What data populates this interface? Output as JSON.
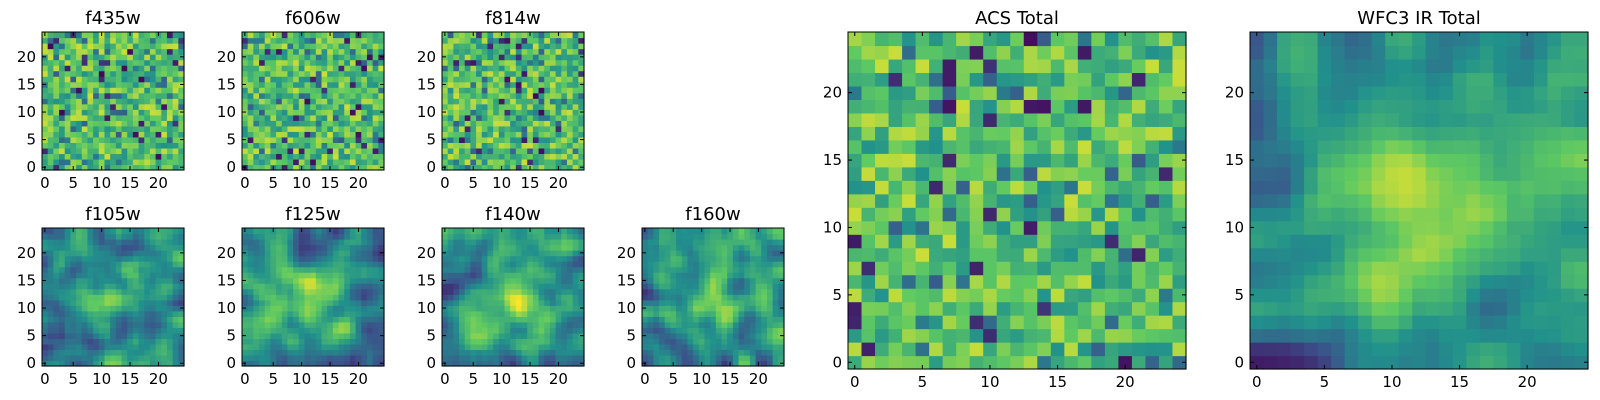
{
  "chart_data": [
    {
      "type": "heatmap",
      "title": "f435w",
      "rows": 25,
      "cols": 25,
      "xlim": [
        0,
        24
      ],
      "ylim": [
        0,
        24
      ],
      "xticks": [
        0,
        5,
        10,
        15,
        20
      ],
      "yticks": [
        0,
        5,
        10,
        15,
        20
      ],
      "xtick_labels": [
        "0",
        "5",
        "10",
        "15",
        "20"
      ],
      "ytick_labels": [
        "0",
        "5",
        "10",
        "15",
        "20"
      ],
      "colormap": "viridis",
      "pattern": "fine noise, mostly green/yellow, scattered dark pixels",
      "seed": 11
    },
    {
      "type": "heatmap",
      "title": "f606w",
      "rows": 25,
      "cols": 25,
      "xlim": [
        0,
        24
      ],
      "ylim": [
        0,
        24
      ],
      "xticks": [
        0,
        5,
        10,
        15,
        20
      ],
      "yticks": [
        0,
        5,
        10,
        15,
        20
      ],
      "xtick_labels": [
        "0",
        "5",
        "10",
        "15",
        "20"
      ],
      "ytick_labels": [
        "0",
        "5",
        "10",
        "15",
        "20"
      ],
      "colormap": "viridis",
      "pattern": "fine noise, mostly green/yellow, scattered dark pixels",
      "seed": 23
    },
    {
      "type": "heatmap",
      "title": "f814w",
      "rows": 25,
      "cols": 25,
      "xlim": [
        0,
        24
      ],
      "ylim": [
        0,
        24
      ],
      "xticks": [
        0,
        5,
        10,
        15,
        20
      ],
      "yticks": [
        0,
        5,
        10,
        15,
        20
      ],
      "xtick_labels": [
        "0",
        "5",
        "10",
        "15",
        "20"
      ],
      "ytick_labels": [
        "0",
        "5",
        "10",
        "15",
        "20"
      ],
      "colormap": "viridis",
      "pattern": "fine noise, mostly green/yellow, scattered dark pixels",
      "seed": 37
    },
    {
      "type": "heatmap",
      "title": "f105w",
      "rows": 25,
      "cols": 25,
      "xlim": [
        0,
        24
      ],
      "ylim": [
        0,
        24
      ],
      "xticks": [
        0,
        5,
        10,
        15,
        20
      ],
      "yticks": [
        0,
        5,
        10,
        15,
        20
      ],
      "xtick_labels": [
        "0",
        "5",
        "10",
        "15",
        "20"
      ],
      "ytick_labels": [
        "0",
        "5",
        "10",
        "15",
        "20"
      ],
      "colormap": "viridis",
      "pattern": "smooth blobs with central bright source",
      "seed": 41
    },
    {
      "type": "heatmap",
      "title": "f125w",
      "rows": 25,
      "cols": 25,
      "xlim": [
        0,
        24
      ],
      "ylim": [
        0,
        24
      ],
      "xticks": [
        0,
        5,
        10,
        15,
        20
      ],
      "yticks": [
        0,
        5,
        10,
        15,
        20
      ],
      "xtick_labels": [
        "0",
        "5",
        "10",
        "15",
        "20"
      ],
      "ytick_labels": [
        "0",
        "5",
        "10",
        "15",
        "20"
      ],
      "colormap": "viridis",
      "pattern": "smooth blobs with central bright source",
      "seed": 53
    },
    {
      "type": "heatmap",
      "title": "f140w",
      "rows": 25,
      "cols": 25,
      "xlim": [
        0,
        24
      ],
      "ylim": [
        0,
        24
      ],
      "xticks": [
        0,
        5,
        10,
        15,
        20
      ],
      "yticks": [
        0,
        5,
        10,
        15,
        20
      ],
      "xtick_labels": [
        "0",
        "5",
        "10",
        "15",
        "20"
      ],
      "ytick_labels": [
        "0",
        "5",
        "10",
        "15",
        "20"
      ],
      "colormap": "viridis",
      "pattern": "smooth blobs with central bright source",
      "seed": 67
    },
    {
      "type": "heatmap",
      "title": "f160w",
      "rows": 25,
      "cols": 25,
      "xlim": [
        0,
        24
      ],
      "ylim": [
        0,
        24
      ],
      "xticks": [
        0,
        5,
        10,
        15,
        20
      ],
      "yticks": [
        0,
        5,
        10,
        15,
        20
      ],
      "xtick_labels": [
        "0",
        "5",
        "10",
        "15",
        "20"
      ],
      "ytick_labels": [
        "0",
        "5",
        "10",
        "15",
        "20"
      ],
      "colormap": "viridis",
      "pattern": "smooth blobs with central bright source",
      "seed": 79
    },
    {
      "type": "heatmap",
      "title": "ACS Total",
      "rows": 25,
      "cols": 25,
      "xlim": [
        0,
        24
      ],
      "ylim": [
        0,
        24
      ],
      "xticks": [
        0,
        5,
        10,
        15,
        20
      ],
      "yticks": [
        0,
        5,
        10,
        15,
        20
      ],
      "xtick_labels": [
        "0",
        "5",
        "10",
        "15",
        "20"
      ],
      "ytick_labels": [
        "0",
        "5",
        "10",
        "15",
        "20"
      ],
      "colormap": "viridis",
      "pattern": "summed noise, mostly green/yellow, scattered dark pixels",
      "seed": 83
    },
    {
      "type": "heatmap",
      "title": "WFC3 IR Total",
      "rows": 25,
      "cols": 25,
      "xlim": [
        0,
        24
      ],
      "ylim": [
        0,
        24
      ],
      "xticks": [
        0,
        5,
        10,
        15,
        20
      ],
      "yticks": [
        0,
        5,
        10,
        15,
        20
      ],
      "xtick_labels": [
        "0",
        "5",
        "10",
        "15",
        "20"
      ],
      "ytick_labels": [
        "0",
        "5",
        "10",
        "15",
        "20"
      ],
      "colormap": "viridis",
      "pattern": "summed smooth map with bright central source, darker left edge",
      "seed": 97
    }
  ],
  "colors": {
    "viridis_stops": [
      "#440154",
      "#3b528b",
      "#21918c",
      "#5ec962",
      "#fde725"
    ],
    "axis": "#000000",
    "background": "#ffffff"
  }
}
